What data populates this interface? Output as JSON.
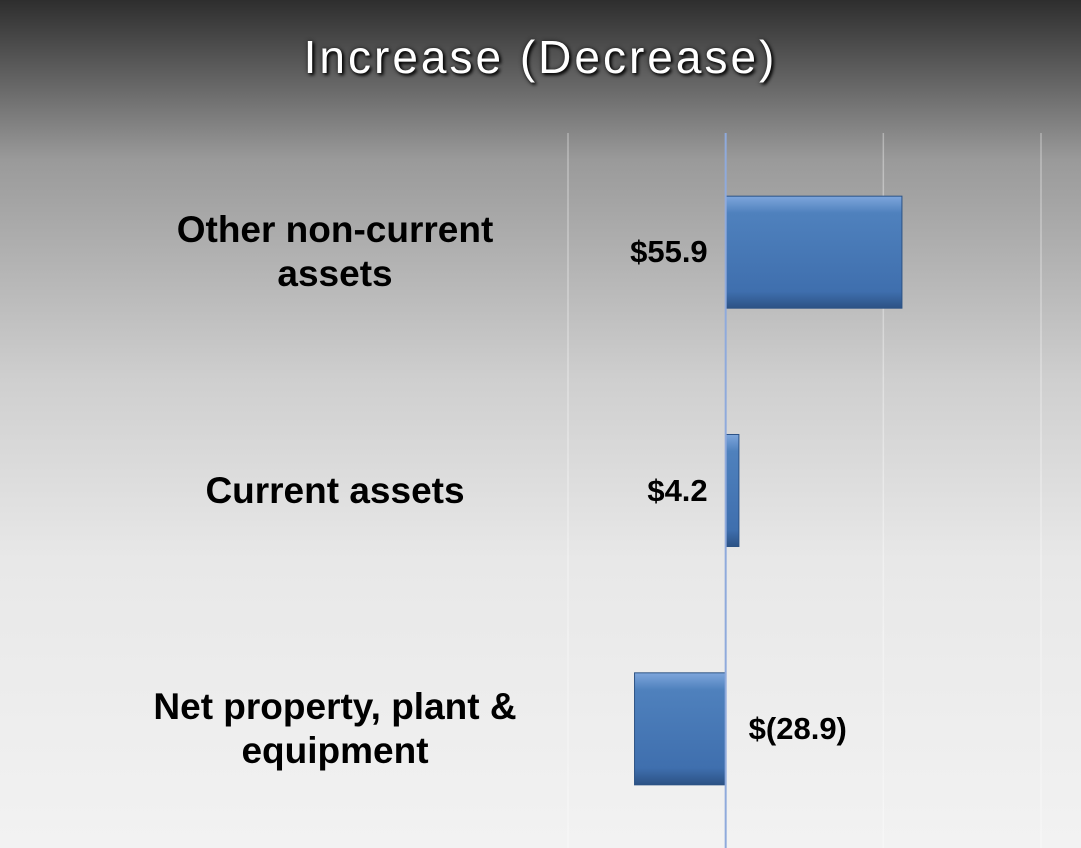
{
  "chart_data": {
    "type": "hbar",
    "title": "Increase (Decrease)",
    "categories": [
      "Other non-current assets",
      "Current assets",
      "Net property, plant & equipment"
    ],
    "values": [
      55.9,
      4.2,
      -28.9
    ],
    "value_labels": [
      "$55.9",
      "$4.2",
      "$(28.9)"
    ],
    "color": "#4f81bd",
    "xlim": [
      -50,
      100
    ],
    "xticks": [
      -50,
      0,
      50,
      100
    ],
    "grid": true
  }
}
